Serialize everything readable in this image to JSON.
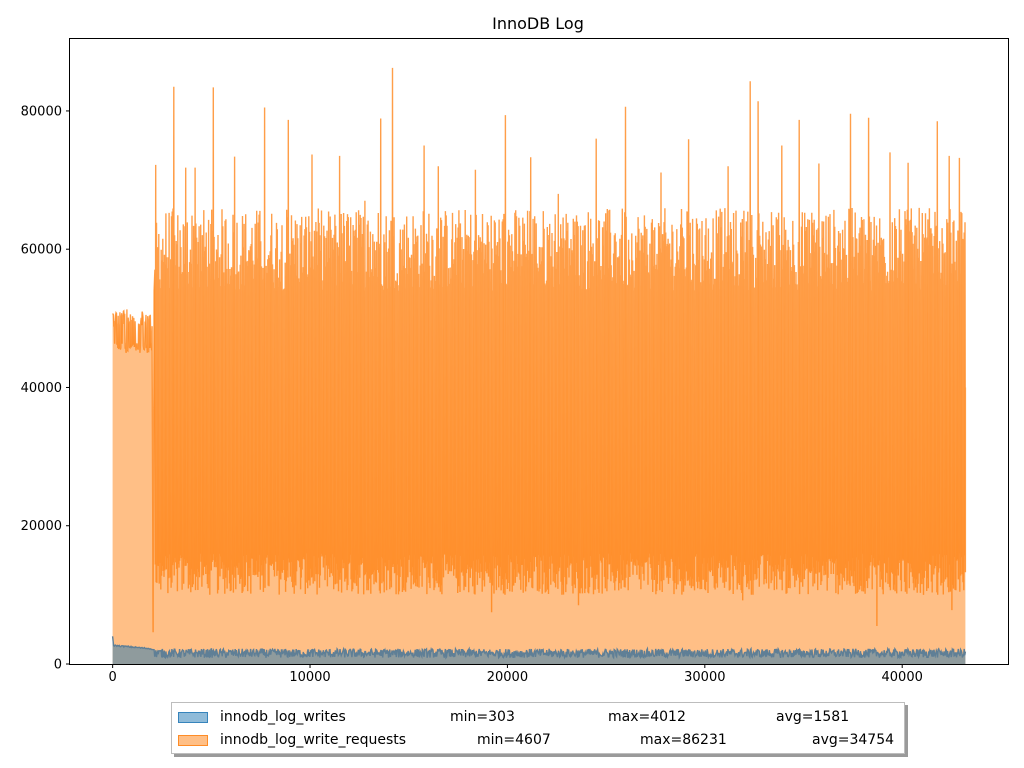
{
  "chart_data": {
    "type": "area",
    "title": "InnoDB Log",
    "xlabel": "",
    "ylabel": "",
    "xlim": [
      -2160,
      45360
    ],
    "ylim": [
      0,
      90550
    ],
    "x_ticks": [
      0,
      10000,
      20000,
      30000,
      40000
    ],
    "y_ticks": [
      0,
      20000,
      40000,
      60000,
      80000
    ],
    "x_tick_labels": [
      "0",
      "10000",
      "20000",
      "30000",
      "40000"
    ],
    "y_tick_labels": [
      "0",
      "20000",
      "40000",
      "60000",
      "80000"
    ],
    "grid": false,
    "legend_position": "bottom-center",
    "series": [
      {
        "name": "innodb_log_writes",
        "color": "#1f77b4",
        "min_label": "min=303",
        "max_label": "max=4012",
        "avg_label": "avg=1581",
        "x": [
          0,
          200,
          1000,
          2000,
          2100,
          10000,
          20000,
          30000,
          40000,
          43200
        ],
        "y": [
          4012,
          2600,
          2200,
          2100,
          1500,
          1550,
          1500,
          1560,
          1500,
          1550
        ],
        "noise_low": 900,
        "noise_high": 2200
      },
      {
        "name": "innodb_log_write_requests",
        "color": "#ff7f0e",
        "min_label": "min=4607",
        "max_label": "max=86231",
        "avg_label": "avg=34754",
        "x": [
          0,
          100,
          1000,
          2000,
          2050,
          2100,
          43200
        ],
        "y": [
          50700,
          48000,
          47500,
          48500,
          4607,
          40000,
          40000
        ],
        "early_band": [
          45000,
          51300
        ],
        "band_low": 13000,
        "band_high": 58000,
        "spikes": [
          [
            2200,
            72200
          ],
          [
            3100,
            83500
          ],
          [
            3700,
            71800
          ],
          [
            4200,
            71800
          ],
          [
            5100,
            83400
          ],
          [
            6200,
            73400
          ],
          [
            7700,
            80500
          ],
          [
            8900,
            78700
          ],
          [
            10100,
            73700
          ],
          [
            11500,
            73500
          ],
          [
            12800,
            67000
          ],
          [
            13600,
            78900
          ],
          [
            14200,
            86231
          ],
          [
            15800,
            75000
          ],
          [
            16500,
            72000
          ],
          [
            18400,
            71500
          ],
          [
            19900,
            79400
          ],
          [
            21200,
            73300
          ],
          [
            22600,
            68000
          ],
          [
            24500,
            76000
          ],
          [
            26000,
            80600
          ],
          [
            27800,
            71100
          ],
          [
            29200,
            75900
          ],
          [
            31200,
            72000
          ],
          [
            32300,
            84300
          ],
          [
            32700,
            81400
          ],
          [
            33900,
            75000
          ],
          [
            34800,
            78700
          ],
          [
            35800,
            72400
          ],
          [
            37400,
            79600
          ],
          [
            38300,
            79000
          ],
          [
            39400,
            74000
          ],
          [
            40300,
            72500
          ],
          [
            41800,
            78500
          ],
          [
            42400,
            73500
          ],
          [
            42900,
            73200
          ]
        ],
        "dips": [
          [
            2050,
            4607
          ],
          [
            19200,
            7500
          ],
          [
            23600,
            8500
          ],
          [
            31900,
            9200
          ],
          [
            38700,
            5500
          ],
          [
            42500,
            7800
          ]
        ]
      }
    ]
  }
}
